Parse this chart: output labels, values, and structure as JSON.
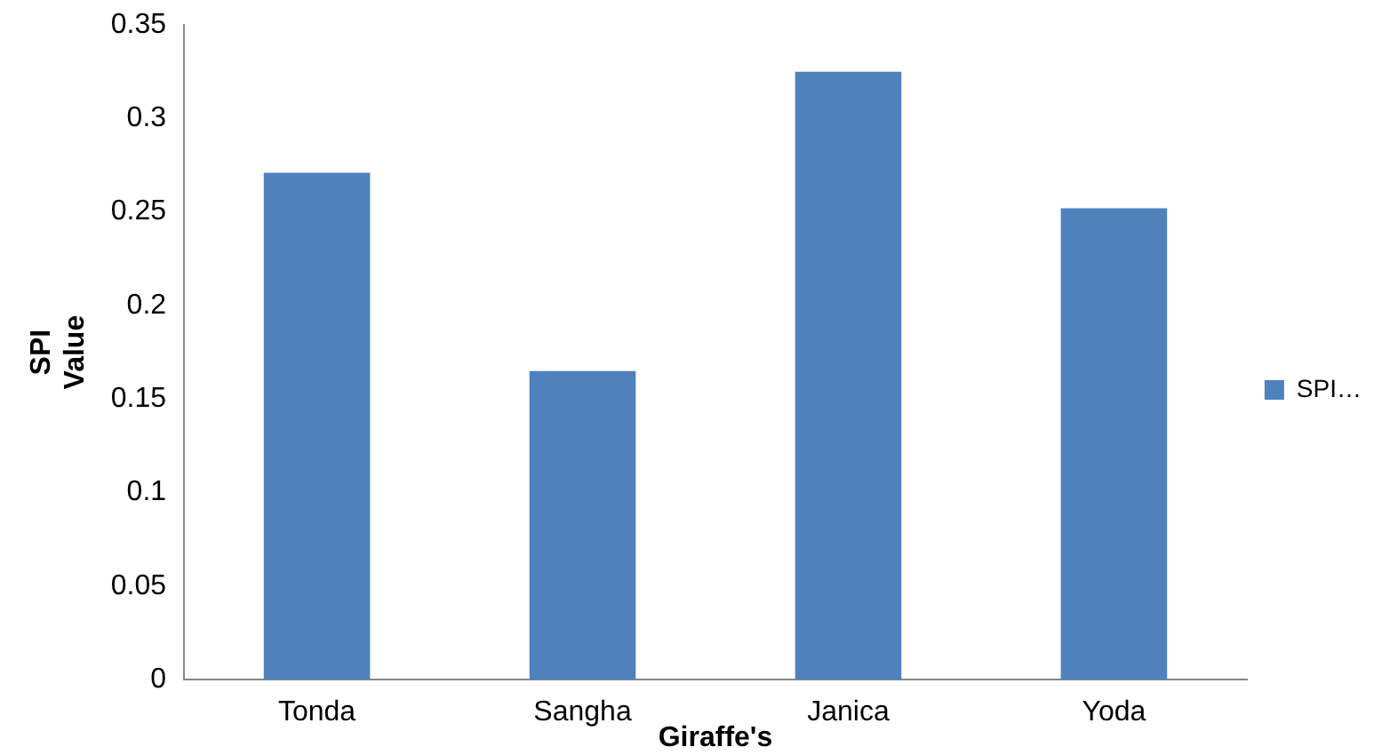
{
  "chart_data": {
    "type": "bar",
    "xlabel": "Giraffe's",
    "ylabel": "SPI Value",
    "categories": [
      "Tonda",
      "Sangha",
      "Janica",
      "Yoda"
    ],
    "series": [
      {
        "name": "SPI…",
        "color": "#4f81bd",
        "values": [
          0.271,
          0.165,
          0.325,
          0.252
        ]
      }
    ],
    "ylim": [
      0,
      0.35
    ],
    "yticks": [
      0,
      0.05,
      0.1,
      0.15,
      0.2,
      0.25,
      0.3,
      0.35
    ],
    "grid": false,
    "legend": "right"
  }
}
